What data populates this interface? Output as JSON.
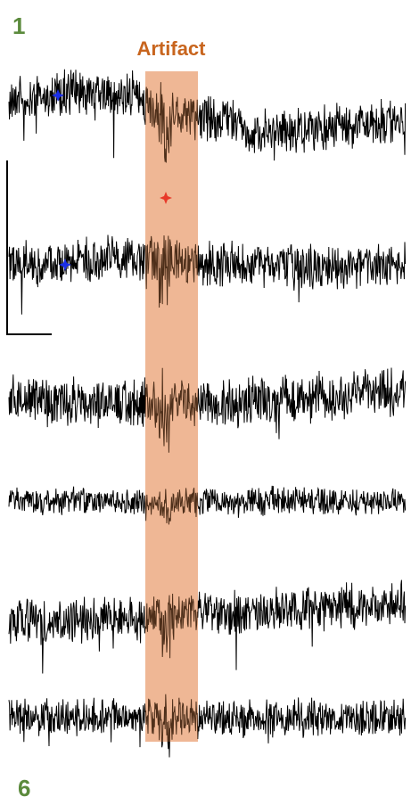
{
  "panel": {
    "first_label": "1",
    "artifact_label": "Artifact",
    "last_label": "6"
  }
}
